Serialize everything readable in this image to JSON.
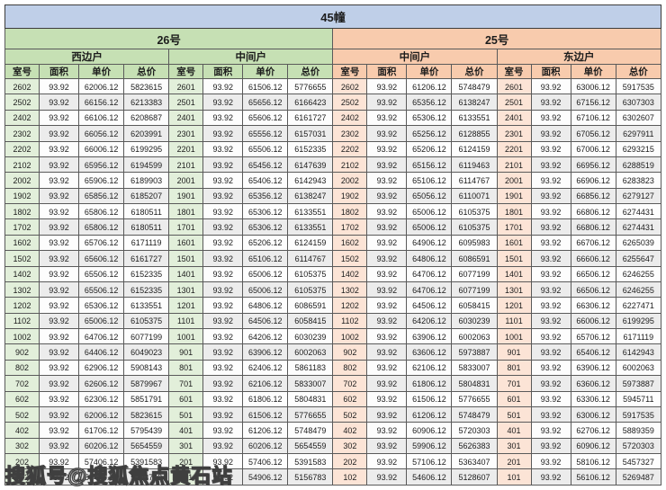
{
  "title": "45幢",
  "watermark": "搜狐号@搜狐焦点黄石站",
  "colors": {
    "title_bg": "#bfcfe8",
    "building_26_bg": "#c6e0b4",
    "building_25_bg": "#f8cbad",
    "room_cell_green": "#e2efda",
    "room_cell_peach": "#fce4d6",
    "stripe_gray": "#ececec"
  },
  "buildings": [
    {
      "label": "26号",
      "units": [
        "西边户",
        "中间户"
      ]
    },
    {
      "label": "25号",
      "units": [
        "中间户",
        "东边户"
      ]
    }
  ],
  "column_headers": [
    "室号",
    "面积",
    "单价",
    "总价"
  ],
  "table": {
    "rows": [
      [
        "2602",
        "93.92",
        "62006.12",
        "5823615",
        "2601",
        "93.92",
        "61506.12",
        "5776655",
        "2602",
        "93.92",
        "61206.12",
        "5748479",
        "2601",
        "93.92",
        "63006.12",
        "5917535"
      ],
      [
        "2502",
        "93.92",
        "66156.12",
        "6213383",
        "2501",
        "93.92",
        "65656.12",
        "6166423",
        "2502",
        "93.92",
        "65356.12",
        "6138247",
        "2501",
        "93.92",
        "67156.12",
        "6307303"
      ],
      [
        "2402",
        "93.92",
        "66106.12",
        "6208687",
        "2401",
        "93.92",
        "65606.12",
        "6161727",
        "2402",
        "93.92",
        "65306.12",
        "6133551",
        "2401",
        "93.92",
        "67106.12",
        "6302607"
      ],
      [
        "2302",
        "93.92",
        "66056.12",
        "6203991",
        "2301",
        "93.92",
        "65556.12",
        "6157031",
        "2302",
        "93.92",
        "65256.12",
        "6128855",
        "2301",
        "93.92",
        "67056.12",
        "6297911"
      ],
      [
        "2202",
        "93.92",
        "66006.12",
        "6199295",
        "2201",
        "93.92",
        "65506.12",
        "6152335",
        "2202",
        "93.92",
        "65206.12",
        "6124159",
        "2201",
        "93.92",
        "67006.12",
        "6293215"
      ],
      [
        "2102",
        "93.92",
        "65956.12",
        "6194599",
        "2101",
        "93.92",
        "65456.12",
        "6147639",
        "2102",
        "93.92",
        "65156.12",
        "6119463",
        "2101",
        "93.92",
        "66956.12",
        "6288519"
      ],
      [
        "2002",
        "93.92",
        "65906.12",
        "6189903",
        "2001",
        "93.92",
        "65406.12",
        "6142943",
        "2002",
        "93.92",
        "65106.12",
        "6114767",
        "2001",
        "93.92",
        "66906.12",
        "6283823"
      ],
      [
        "1902",
        "93.92",
        "65856.12",
        "6185207",
        "1901",
        "93.92",
        "65356.12",
        "6138247",
        "1902",
        "93.92",
        "65056.12",
        "6110071",
        "1901",
        "93.92",
        "66856.12",
        "6279127"
      ],
      [
        "1802",
        "93.92",
        "65806.12",
        "6180511",
        "1801",
        "93.92",
        "65306.12",
        "6133551",
        "1802",
        "93.92",
        "65006.12",
        "6105375",
        "1801",
        "93.92",
        "66806.12",
        "6274431"
      ],
      [
        "1702",
        "93.92",
        "65806.12",
        "6180511",
        "1701",
        "93.92",
        "65306.12",
        "6133551",
        "1702",
        "93.92",
        "65006.12",
        "6105375",
        "1701",
        "93.92",
        "66806.12",
        "6274431"
      ],
      [
        "1602",
        "93.92",
        "65706.12",
        "6171119",
        "1601",
        "93.92",
        "65206.12",
        "6124159",
        "1602",
        "93.92",
        "64906.12",
        "6095983",
        "1601",
        "93.92",
        "66706.12",
        "6265039"
      ],
      [
        "1502",
        "93.92",
        "65606.12",
        "6161727",
        "1501",
        "93.92",
        "65106.12",
        "6114767",
        "1502",
        "93.92",
        "64806.12",
        "6086591",
        "1501",
        "93.92",
        "66606.12",
        "6255647"
      ],
      [
        "1402",
        "93.92",
        "65506.12",
        "6152335",
        "1401",
        "93.92",
        "65006.12",
        "6105375",
        "1402",
        "93.92",
        "64706.12",
        "6077199",
        "1401",
        "93.92",
        "66506.12",
        "6246255"
      ],
      [
        "1302",
        "93.92",
        "65506.12",
        "6152335",
        "1301",
        "93.92",
        "65006.12",
        "6105375",
        "1302",
        "93.92",
        "64706.12",
        "6077199",
        "1301",
        "93.92",
        "66506.12",
        "6246255"
      ],
      [
        "1202",
        "93.92",
        "65306.12",
        "6133551",
        "1201",
        "93.92",
        "64806.12",
        "6086591",
        "1202",
        "93.92",
        "64506.12",
        "6058415",
        "1201",
        "93.92",
        "66306.12",
        "6227471"
      ],
      [
        "1102",
        "93.92",
        "65006.12",
        "6105375",
        "1101",
        "93.92",
        "64506.12",
        "6058415",
        "1102",
        "93.92",
        "64206.12",
        "6030239",
        "1101",
        "93.92",
        "66006.12",
        "6199295"
      ],
      [
        "1002",
        "93.92",
        "64706.12",
        "6077199",
        "1001",
        "93.92",
        "64206.12",
        "6030239",
        "1002",
        "93.92",
        "63906.12",
        "6002063",
        "1001",
        "93.92",
        "65706.12",
        "6171119"
      ],
      [
        "902",
        "93.92",
        "64406.12",
        "6049023",
        "901",
        "93.92",
        "63906.12",
        "6002063",
        "902",
        "93.92",
        "63606.12",
        "5973887",
        "901",
        "93.92",
        "65406.12",
        "6142943"
      ],
      [
        "802",
        "93.92",
        "62906.12",
        "5908143",
        "801",
        "93.92",
        "62406.12",
        "5861183",
        "802",
        "93.92",
        "62106.12",
        "5833007",
        "801",
        "93.92",
        "63906.12",
        "6002063"
      ],
      [
        "702",
        "93.92",
        "62606.12",
        "5879967",
        "701",
        "93.92",
        "62106.12",
        "5833007",
        "702",
        "93.92",
        "61806.12",
        "5804831",
        "701",
        "93.92",
        "63606.12",
        "5973887"
      ],
      [
        "602",
        "93.92",
        "62306.12",
        "5851791",
        "601",
        "93.92",
        "61806.12",
        "5804831",
        "602",
        "93.92",
        "61506.12",
        "5776655",
        "601",
        "93.92",
        "63306.12",
        "5945711"
      ],
      [
        "502",
        "93.92",
        "62006.12",
        "5823615",
        "501",
        "93.92",
        "61506.12",
        "5776655",
        "502",
        "93.92",
        "61206.12",
        "5748479",
        "501",
        "93.92",
        "63006.12",
        "5917535"
      ],
      [
        "402",
        "93.92",
        "61706.12",
        "5795439",
        "401",
        "93.92",
        "61206.12",
        "5748479",
        "402",
        "93.92",
        "60906.12",
        "5720303",
        "401",
        "93.92",
        "62706.12",
        "5889359"
      ],
      [
        "302",
        "93.92",
        "60206.12",
        "5654559",
        "301",
        "93.92",
        "60206.12",
        "5654559",
        "302",
        "93.92",
        "59906.12",
        "5626383",
        "301",
        "93.92",
        "60906.12",
        "5720303"
      ],
      [
        "202",
        "93.92",
        "57406.12",
        "5391583",
        "201",
        "93.92",
        "57406.12",
        "5391583",
        "202",
        "93.92",
        "57106.12",
        "5363407",
        "201",
        "93.92",
        "58106.12",
        "5457327"
      ],
      [
        "102",
        "93.92",
        "55406.12",
        "5203743",
        "101",
        "93.92",
        "54906.12",
        "5156783",
        "102",
        "93.92",
        "54606.12",
        "5128607",
        "101",
        "93.92",
        "56106.12",
        "5269487"
      ]
    ]
  }
}
